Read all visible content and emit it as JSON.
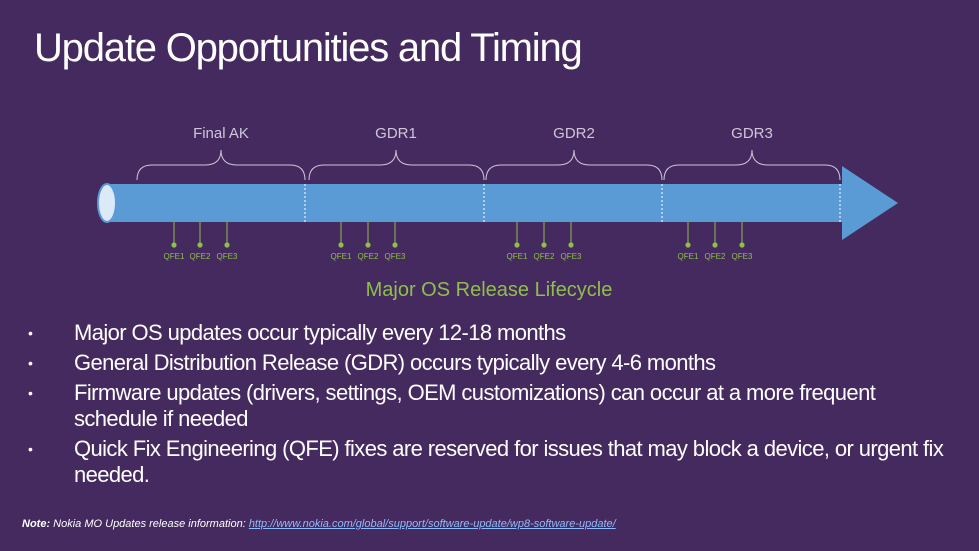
{
  "title": "Update Opportunities and Timing",
  "diagram": {
    "phases": [
      "Final AK",
      "GDR1",
      "GDR2",
      "GDR3"
    ],
    "qfe_labels": [
      "QFE1",
      "QFE2",
      "QFE3"
    ],
    "lifecycle_label": "Major OS Release Lifecycle",
    "colors": {
      "background": "#452a5f",
      "arrow": "#5b9bd5",
      "green": "#8fbf4a",
      "brace": "#cfc7d9"
    }
  },
  "bullets": [
    "Major OS updates occur typically every 12-18 months",
    "General Distribution Release (GDR) occurs typically every 4-6 months",
    "Firmware updates (drivers, settings, OEM customizations) can occur at a more frequent schedule if needed",
    "Quick Fix Engineering (QFE) fixes are reserved for issues that may block a device, or urgent fix needed."
  ],
  "note": {
    "prefix": "Note:",
    "text": " Nokia MO Updates release information: ",
    "link": "http://www.nokia.com/global/support/software-update/wp8-software-update/"
  }
}
